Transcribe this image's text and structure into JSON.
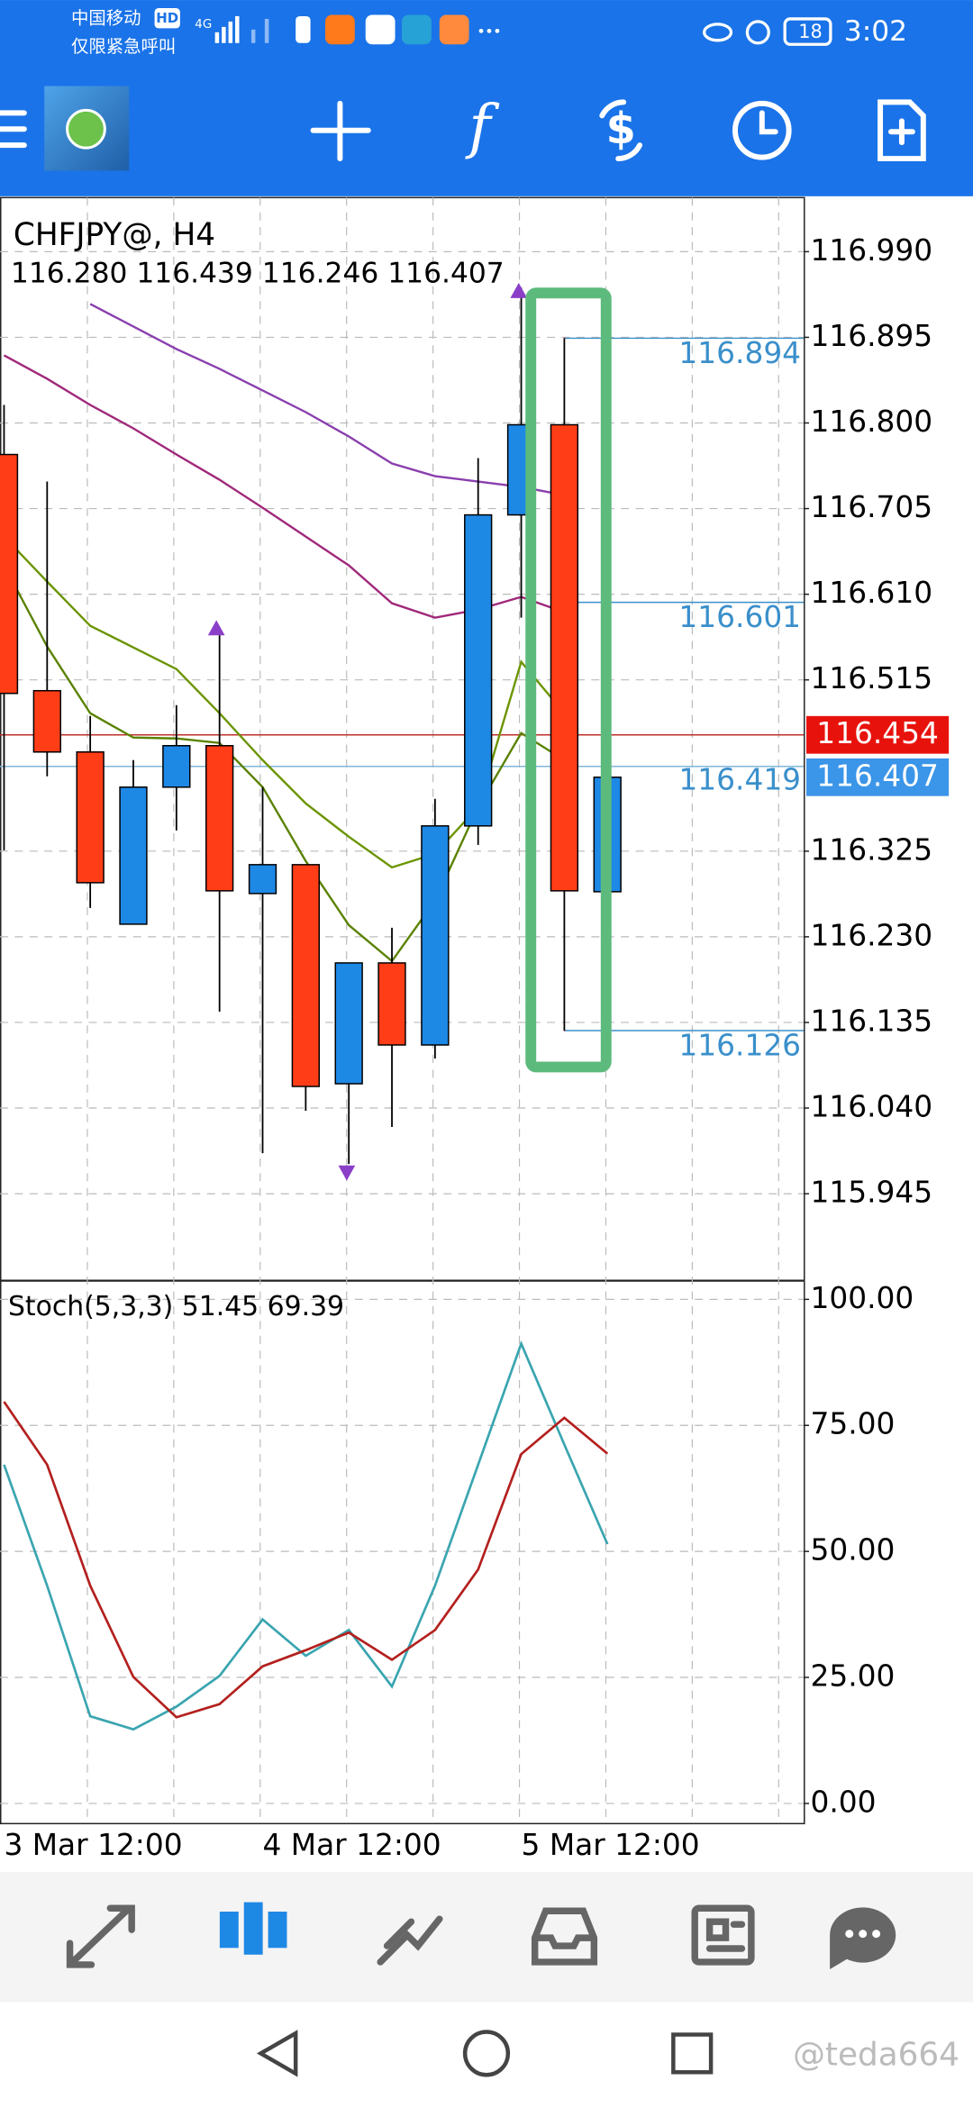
{
  "status_bar": {
    "carrier": "中国移动",
    "carrier_badge": "HD",
    "emergency": "仅限紧急呼叫",
    "network": "4G",
    "battery": "18",
    "time": "3:02"
  },
  "chart_data": [
    {
      "type": "candlestick",
      "title": "CHFJPY@, H4",
      "subtitle": "116.280 116.439 116.246 116.407",
      "categories": [
        "3 Mar 12:00",
        null,
        null,
        null,
        null,
        null,
        "4 Mar 12:00",
        null,
        null,
        null,
        null,
        null,
        "5 Mar 12:00",
        null,
        null
      ],
      "open": [
        116.765,
        116.503,
        116.435,
        116.244,
        116.396,
        116.442,
        116.278,
        116.31,
        116.067,
        116.201,
        116.11,
        116.353,
        116.698,
        116.798,
        116.28
      ],
      "high": [
        116.82,
        116.735,
        116.475,
        116.426,
        116.487,
        116.573,
        116.396,
        116.31,
        116.201,
        116.24,
        116.383,
        116.761,
        116.95,
        116.894,
        116.439
      ],
      "low": [
        116.326,
        116.408,
        116.262,
        116.244,
        116.348,
        116.147,
        115.99,
        116.037,
        115.978,
        116.019,
        116.095,
        116.332,
        116.584,
        116.126,
        116.246
      ],
      "close": [
        116.5,
        116.435,
        116.29,
        116.396,
        116.442,
        116.281,
        116.31,
        116.064,
        116.201,
        116.11,
        116.353,
        116.698,
        116.798,
        116.281,
        116.407
      ],
      "up_color": "#1e88e5",
      "down_color": "#ff3d17",
      "series": [
        {
          "color": "#8a3fae",
          "values": [
            null,
            null,
            116.932,
            116.907,
            116.882,
            116.86,
            116.836,
            116.812,
            116.785,
            116.755,
            116.741,
            116.735,
            116.729,
            116.72,
            null
          ]
        },
        {
          "color": "#a0287a",
          "values": [
            116.875,
            116.849,
            116.82,
            116.794,
            116.765,
            116.737,
            116.706,
            116.674,
            116.642,
            116.6,
            116.584,
            116.593,
            116.607,
            116.59,
            null
          ]
        },
        {
          "color": "#6b9400",
          "values": [
            116.674,
            116.624,
            116.575,
            116.551,
            116.527,
            116.478,
            116.426,
            116.378,
            116.341,
            116.307,
            116.322,
            116.374,
            116.535,
            116.478,
            null
          ]
        },
        {
          "color": "#5a8200",
          "values": [
            116.642,
            116.552,
            116.478,
            116.451,
            116.45,
            116.445,
            116.396,
            116.314,
            116.243,
            116.203,
            116.27,
            116.374,
            116.456,
            116.426,
            null
          ]
        }
      ],
      "levels": [
        116.894,
        116.601,
        116.126
      ],
      "reference_line": 116.419,
      "bid": 116.454,
      "last": 116.407,
      "ylim": [
        115.85,
        117.05
      ],
      "yticks": [
        {
          "value": 116.99,
          "label": "116.990"
        },
        116.895,
        {
          "value": 116.8,
          "label": "116.800"
        },
        116.705,
        {
          "value": 116.61,
          "label": "116.610"
        },
        116.515,
        116.325,
        {
          "value": 116.23,
          "label": "116.230"
        },
        116.135,
        {
          "value": 116.04,
          "label": "116.040"
        },
        115.945
      ],
      "grid": true
    },
    {
      "type": "line",
      "title": "Stoch(5,3,3) 51.45 69.39",
      "series": [
        {
          "color": "#3aa5b0",
          "values": [
            67.2,
            43.2,
            17.3,
            14.7,
            19.2,
            25.3,
            36.5,
            29.3,
            34.4,
            23.2,
            43.2,
            67.2,
            91.2,
            71.2,
            51.45
          ]
        },
        {
          "color": "#b3201e",
          "values": [
            79.7,
            67.2,
            43.2,
            25.1,
            17.1,
            19.7,
            27.2,
            30.4,
            33.9,
            28.5,
            34.4,
            46.4,
            69.3,
            76.5,
            69.39
          ]
        }
      ],
      "ylim": [
        -4,
        103.7
      ],
      "yticks": [
        {
          "value": 100,
          "label": "100.00"
        },
        {
          "value": 75,
          "label": "75.00"
        },
        {
          "value": 50,
          "label": "50.00"
        },
        {
          "value": 25,
          "label": "25.00"
        },
        {
          "value": 0,
          "label": "0.00"
        }
      ],
      "grid": true
    }
  ],
  "watermark": "@teda664"
}
